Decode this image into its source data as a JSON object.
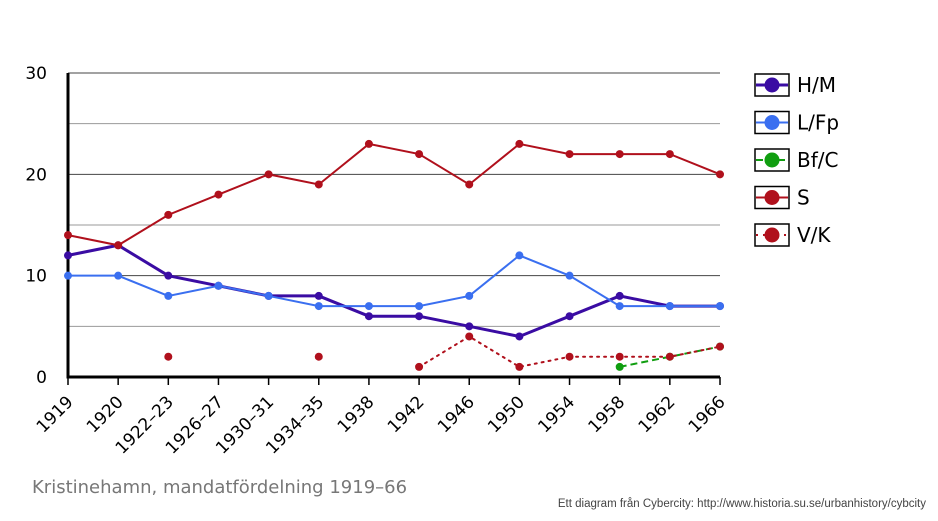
{
  "chart_data": {
    "type": "line",
    "title": "",
    "xlabel": "",
    "ylabel": "",
    "categories": [
      "1919",
      "1920",
      "1922–23",
      "1926–27",
      "1930–31",
      "1934–35",
      "1938",
      "1942",
      "1946",
      "1950",
      "1954",
      "1958",
      "1962",
      "1966"
    ],
    "yticks": [
      0,
      10,
      20,
      30
    ],
    "ylim": [
      0,
      30
    ],
    "grid": true,
    "legend_position": "right",
    "series": [
      {
        "name": "H/M",
        "color": "#3a0ca3",
        "style": "solid",
        "width": 3,
        "values": [
          12,
          13,
          10,
          9,
          8,
          8,
          6,
          6,
          5,
          4,
          6,
          8,
          7,
          7
        ]
      },
      {
        "name": "L/Fp",
        "color": "#3a6ff0",
        "style": "solid",
        "width": 2,
        "values": [
          10,
          10,
          8,
          9,
          8,
          7,
          7,
          7,
          8,
          12,
          10,
          7,
          7,
          7
        ]
      },
      {
        "name": "Bf/C",
        "color": "#109e10",
        "style": "dashed",
        "width": 2,
        "values": [
          null,
          null,
          null,
          null,
          null,
          null,
          null,
          null,
          null,
          null,
          null,
          1,
          2,
          3
        ]
      },
      {
        "name": "S",
        "color": "#b0101c",
        "style": "solid",
        "width": 2,
        "values": [
          14,
          13,
          16,
          18,
          20,
          19,
          23,
          22,
          19,
          23,
          22,
          22,
          22,
          20
        ]
      },
      {
        "name": "V/K",
        "color": "#b0101c",
        "style": "dotted",
        "width": 2,
        "values": [
          null,
          null,
          2,
          null,
          null,
          2,
          null,
          1,
          4,
          1,
          2,
          2,
          2,
          3
        ]
      }
    ]
  },
  "caption": "Kristinehamn, mandatfördelning 1919–66",
  "source": "Ett diagram från Cybercity: http://www.historia.su.se/urbanhistory/cybcity"
}
